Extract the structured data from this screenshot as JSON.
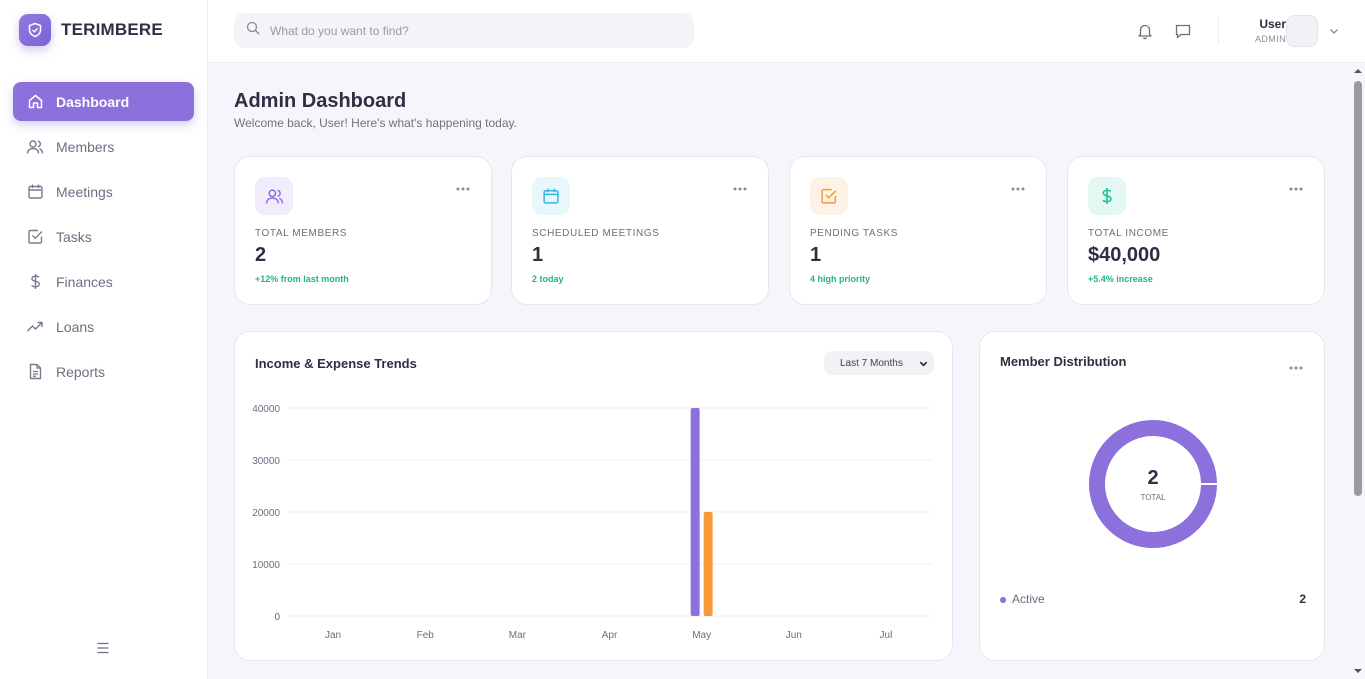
{
  "brand": {
    "name": "TERIMBERE"
  },
  "sidebar": {
    "items": [
      {
        "label": "Dashboard",
        "icon": "home-icon",
        "active": true
      },
      {
        "label": "Members",
        "icon": "users-icon",
        "active": false
      },
      {
        "label": "Meetings",
        "icon": "calendar-icon",
        "active": false
      },
      {
        "label": "Tasks",
        "icon": "checkbox-icon",
        "active": false
      },
      {
        "label": "Finances",
        "icon": "dollar-icon",
        "active": false
      },
      {
        "label": "Loans",
        "icon": "trending-up-icon",
        "active": false
      },
      {
        "label": "Reports",
        "icon": "document-icon",
        "active": false
      }
    ]
  },
  "search": {
    "placeholder": "What do you want to find?",
    "value": ""
  },
  "user": {
    "name": "User",
    "role": "ADMIN"
  },
  "page": {
    "title": "Admin Dashboard",
    "subtitle": "Welcome back, User! Here's what's happening today."
  },
  "stats": [
    {
      "label": "TOTAL MEMBERS",
      "value": "2",
      "note": "+12% from last month",
      "icon": "users-icon",
      "color": "#8c70dc",
      "bg": "#f1edfc"
    },
    {
      "label": "SCHEDULED MEETINGS",
      "value": "1",
      "note": "2 today",
      "icon": "calendar-icon",
      "color": "#38b6e0",
      "bg": "#e7f7fc"
    },
    {
      "label": "PENDING TASKS",
      "value": "1",
      "note": "4 high priority",
      "icon": "checkbox-icon",
      "color": "#f39c3e",
      "bg": "#fef2e6"
    },
    {
      "label": "TOTAL INCOME",
      "value": "$40,000",
      "note": "+5.4% increase",
      "icon": "dollar-icon",
      "color": "#1fbf9a",
      "bg": "#e4f8f3"
    }
  ],
  "trends": {
    "title": "Income & Expense Trends",
    "period": "Last 7 Months"
  },
  "distribution": {
    "title": "Member Distribution",
    "center_value": "2",
    "center_label": "TOTAL",
    "legend": [
      {
        "label": "Active",
        "value": "2"
      }
    ]
  },
  "chart_data": {
    "type": "bar",
    "categories": [
      "Jan",
      "Feb",
      "Mar",
      "Apr",
      "May",
      "Jun",
      "Jul"
    ],
    "series": [
      {
        "values": [
          0,
          0,
          0,
          0,
          40000,
          0,
          0
        ],
        "color": "#8c70dc"
      },
      {
        "values": [
          0,
          0,
          0,
          0,
          20000,
          0,
          0
        ],
        "color": "#f79b3a"
      }
    ],
    "yticks": [
      "0",
      "10000",
      "20000",
      "30000",
      "40000"
    ],
    "ylim": [
      0,
      40000
    ],
    "grid": true
  }
}
